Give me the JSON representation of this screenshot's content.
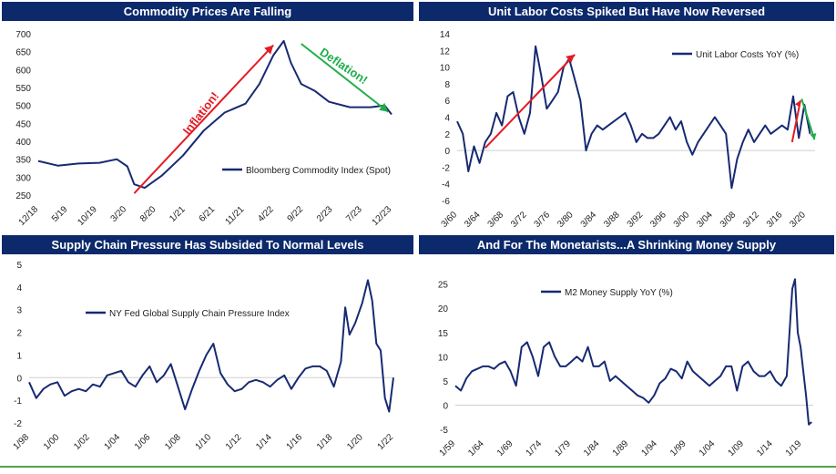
{
  "colors": {
    "title_bg": "#0c2a6b",
    "title_text": "#ffffff",
    "series": "#172a72",
    "inflation": "#e31b23",
    "deflation": "#1fae4b",
    "rule": "#5aa04c"
  },
  "chart_data": [
    {
      "type": "line",
      "title": "Commodity Prices Are Falling",
      "series": [
        {
          "name": "Bloomberg Commodity Index (Spot)",
          "x": [
            2018.92,
            2019.2,
            2019.5,
            2019.8,
            2020.05,
            2020.2,
            2020.3,
            2020.45,
            2020.7,
            2021.0,
            2021.3,
            2021.6,
            2021.9,
            2022.1,
            2022.3,
            2022.45,
            2022.55,
            2022.7,
            2022.9,
            2023.1,
            2023.4,
            2023.7,
            2023.9,
            2024.0
          ],
          "y": [
            345,
            332,
            338,
            340,
            350,
            330,
            280,
            270,
            305,
            360,
            430,
            480,
            505,
            560,
            640,
            680,
            620,
            560,
            540,
            510,
            495,
            495,
            500,
            475
          ]
        }
      ],
      "xticks": [
        "12/18",
        "5/19",
        "10/19",
        "3/20",
        "8/20",
        "1/21",
        "6/21",
        "11/21",
        "4/22",
        "9/22",
        "2/23",
        "7/23",
        "12/23"
      ],
      "yticks": [
        "250",
        "300",
        "350",
        "400",
        "450",
        "500",
        "550",
        "600",
        "650",
        "700"
      ],
      "ylim": [
        250,
        700
      ],
      "annotations": [
        "Inflation!",
        "Deflation!"
      ]
    },
    {
      "type": "line",
      "title": "Unit Labor Costs Spiked But Have Now Reversed",
      "series": [
        {
          "name": "Unit Labor Costs YoY (%)",
          "x": [
            1960,
            1961,
            1962,
            1963,
            1964,
            1965,
            1966,
            1967,
            1968,
            1969,
            1970,
            1971,
            1972,
            1973,
            1974,
            1975,
            1976,
            1977,
            1978,
            1979,
            1980,
            1981,
            1982,
            1983,
            1984,
            1985,
            1986,
            1987,
            1988,
            1989,
            1990,
            1991,
            1992,
            1993,
            1994,
            1995,
            1996,
            1997,
            1998,
            1999,
            2000,
            2001,
            2002,
            2003,
            2004,
            2005,
            2006,
            2007,
            2008,
            2009,
            2010,
            2011,
            2012,
            2013,
            2014,
            2015,
            2016,
            2017,
            2018,
            2019,
            2020,
            2021,
            2022,
            2023
          ],
          "y": [
            3.5,
            2,
            -2.5,
            0.5,
            -1.5,
            1,
            2,
            4.5,
            3,
            6.5,
            7,
            4,
            2,
            4.5,
            12.5,
            9,
            5,
            6,
            7,
            10,
            11,
            8.5,
            6,
            0,
            2,
            3,
            2.5,
            3,
            3.5,
            4,
            4.5,
            3,
            1,
            2,
            1.5,
            1.5,
            2,
            3,
            4,
            2.5,
            3.5,
            1,
            -0.5,
            1,
            2,
            3,
            4,
            3,
            2,
            -4.5,
            -1,
            1,
            2.5,
            1,
            2,
            3,
            2,
            2.5,
            3,
            2.5,
            6.5,
            1.5,
            5.5,
            2
          ]
        }
      ],
      "xticks": [
        "3/60",
        "3/64",
        "3/68",
        "3/72",
        "3/76",
        "3/80",
        "3/84",
        "3/88",
        "3/92",
        "3/96",
        "3/00",
        "3/04",
        "3/08",
        "3/12",
        "3/16",
        "3/20"
      ],
      "yticks": [
        "-6",
        "-4",
        "-2",
        "0",
        "2",
        "4",
        "6",
        "8",
        "10",
        "12",
        "14"
      ],
      "ylim": [
        -6,
        14
      ]
    },
    {
      "type": "line",
      "title": "Supply Chain Pressure Has Subsided To Normal Levels",
      "series": [
        {
          "name": "NY Fed Global Supply Chain Pressure Index",
          "x": [
            1998.0,
            1998.5,
            1999.0,
            1999.5,
            2000.0,
            2000.5,
            2001.0,
            2001.5,
            2002.0,
            2002.5,
            2003.0,
            2003.5,
            2004.0,
            2004.5,
            2005.0,
            2005.5,
            2006.0,
            2006.5,
            2007.0,
            2007.5,
            2008.0,
            2008.5,
            2009.0,
            2009.5,
            2010.0,
            2010.5,
            2011.0,
            2011.5,
            2012.0,
            2012.5,
            2013.0,
            2013.5,
            2014.0,
            2014.5,
            2015.0,
            2015.5,
            2016.0,
            2016.5,
            2017.0,
            2017.5,
            2018.0,
            2018.5,
            2019.0,
            2019.5,
            2020.0,
            2020.3,
            2020.6,
            2021.0,
            2021.5,
            2021.9,
            2022.2,
            2022.5,
            2022.8,
            2023.1,
            2023.4,
            2023.7
          ],
          "y": [
            -0.2,
            -0.9,
            -0.5,
            -0.3,
            -0.2,
            -0.8,
            -0.6,
            -0.5,
            -0.6,
            -0.3,
            -0.4,
            0.1,
            0.2,
            0.3,
            -0.2,
            -0.4,
            0.1,
            0.5,
            -0.2,
            0.1,
            0.6,
            -0.4,
            -1.4,
            -0.5,
            0.3,
            1.0,
            1.5,
            0.2,
            -0.3,
            -0.6,
            -0.5,
            -0.2,
            -0.1,
            -0.2,
            -0.4,
            -0.1,
            0.1,
            -0.5,
            0.0,
            0.4,
            0.5,
            0.5,
            0.3,
            -0.4,
            0.7,
            3.1,
            1.9,
            2.4,
            3.3,
            4.3,
            3.4,
            1.5,
            1.2,
            -0.9,
            -1.5,
            0.0
          ]
        }
      ],
      "xticks": [
        "1/98",
        "1/00",
        "1/02",
        "1/04",
        "1/06",
        "1/08",
        "1/10",
        "1/12",
        "1/14",
        "1/16",
        "1/18",
        "1/20",
        "1/22"
      ],
      "yticks": [
        "-2",
        "-1",
        "0",
        "1",
        "2",
        "3",
        "4",
        "5"
      ],
      "ylim": [
        -2,
        5
      ]
    },
    {
      "type": "line",
      "title": "And For The Monetarists...A Shrinking Money Supply",
      "series": [
        {
          "name": "M2 Money Supply YoY (%)",
          "x": [
            1959,
            1960,
            1961,
            1962,
            1963,
            1964,
            1965,
            1966,
            1967,
            1968,
            1969,
            1970,
            1971,
            1972,
            1973,
            1974,
            1975,
            1976,
            1977,
            1978,
            1979,
            1980,
            1981,
            1982,
            1983,
            1984,
            1985,
            1986,
            1987,
            1988,
            1989,
            1990,
            1991,
            1992,
            1993,
            1994,
            1995,
            1996,
            1997,
            1998,
            1999,
            2000,
            2001,
            2002,
            2003,
            2004,
            2005,
            2006,
            2007,
            2008,
            2009,
            2010,
            2011,
            2012,
            2013,
            2014,
            2015,
            2016,
            2017,
            2018,
            2019,
            2020,
            2020.5,
            2021,
            2021.5,
            2022,
            2022.5,
            2023,
            2023.5
          ],
          "y": [
            4,
            3,
            5.5,
            7,
            7.5,
            8,
            8,
            7.5,
            8.5,
            9,
            7,
            4,
            12,
            13,
            10,
            6,
            12,
            13,
            10,
            8,
            8,
            9,
            10,
            9,
            12,
            8,
            8,
            9,
            5,
            6,
            5,
            4,
            3,
            2,
            1.5,
            0.5,
            2,
            4.5,
            5.5,
            7.5,
            7,
            5.5,
            9,
            7,
            6,
            5,
            4,
            5,
            6,
            8,
            8,
            3,
            8,
            9,
            7,
            6,
            6,
            7,
            5,
            4,
            6,
            24,
            26,
            15,
            12,
            7,
            2,
            -4,
            -3.5
          ]
        }
      ],
      "xticks": [
        "1/59",
        "1/64",
        "1/69",
        "1/74",
        "1/79",
        "1/84",
        "1/89",
        "1/94",
        "1/99",
        "1/04",
        "1/09",
        "1/14",
        "1/19"
      ],
      "yticks": [
        "-5",
        "0",
        "5",
        "10",
        "15",
        "20",
        "25"
      ],
      "ylim": [
        -5,
        27
      ]
    }
  ]
}
